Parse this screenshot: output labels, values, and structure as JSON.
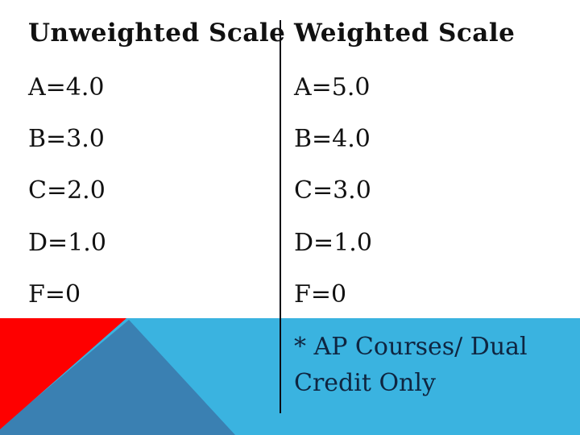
{
  "slide": {
    "columns": [
      {
        "heading": "Unweighted Scale",
        "rows": [
          "A=4.0",
          "B=3.0",
          "C=2.0",
          "D=1.0",
          "F=0"
        ]
      },
      {
        "heading": "Weighted Scale",
        "rows": [
          "A=5.0",
          "B=4.0",
          "C=3.0",
          "D=1.0",
          "F=0"
        ]
      }
    ],
    "note": {
      "line1": "* AP Courses/ Dual",
      "line2": "Credit Only"
    }
  },
  "colors": {
    "red": "#fe0000",
    "steel_blue": "#3a80b2",
    "sky_blue": "#3ab3e0",
    "note_text": "#0f2540",
    "body_text": "#111111"
  }
}
